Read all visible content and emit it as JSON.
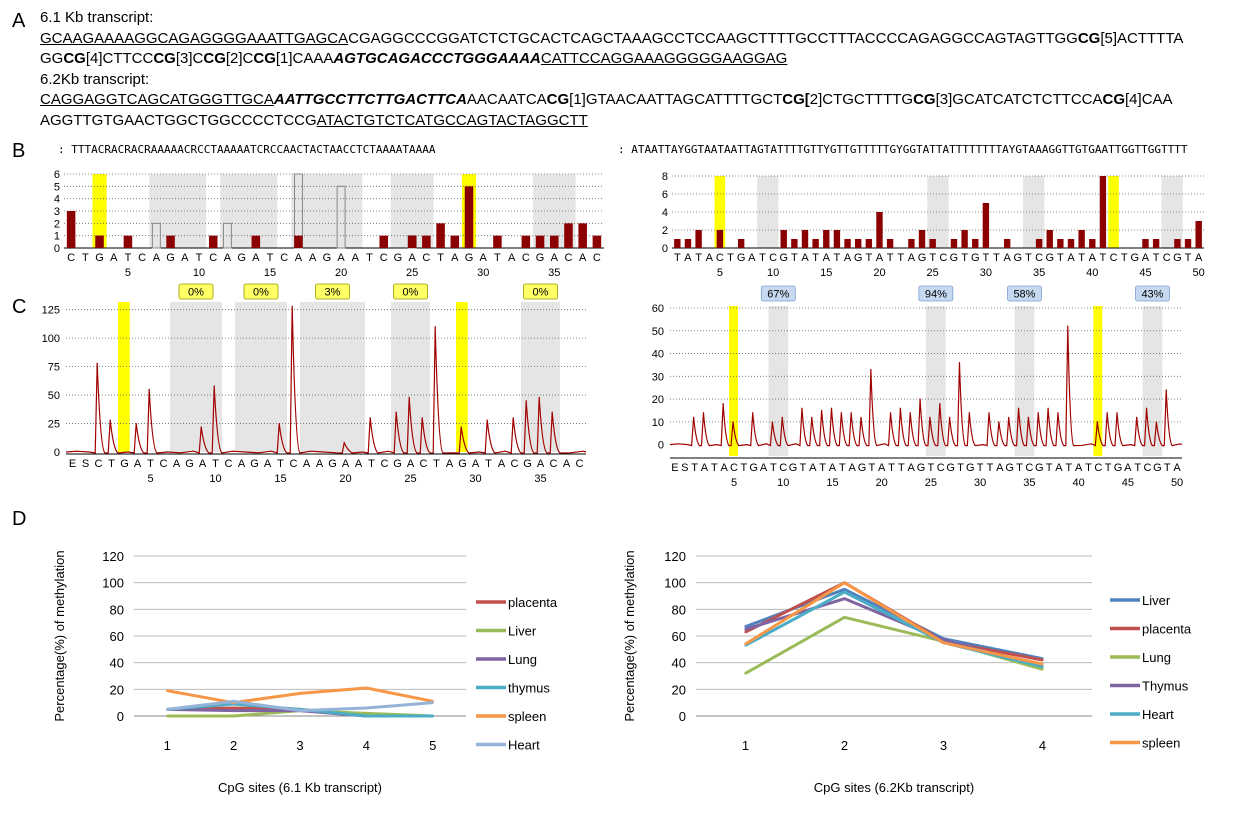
{
  "panel_labels": [
    "A",
    "B",
    "C",
    "D"
  ],
  "sequences": {
    "t61_title": "6.1 Kb transcript:",
    "t61_line1": [
      {
        "t": "GCAAGAAAAGGCAGAGGGGAAATTGAGCA",
        "s": "u"
      },
      {
        "t": "CGAGGCCCGGATCTCTGCACTCAGCTAAAGCCTCCAAGCTTTTGCCTTTACCCCAGAGGCCAGTAGTTGG",
        "s": ""
      },
      {
        "t": "CG",
        "s": "b"
      },
      {
        "t": "[5]ACTTTTA",
        "s": ""
      }
    ],
    "t61_line2": [
      {
        "t": "GG",
        "s": ""
      },
      {
        "t": "CG",
        "s": "b"
      },
      {
        "t": "[4]CTTCC",
        "s": ""
      },
      {
        "t": "CG",
        "s": "b"
      },
      {
        "t": "[3]C",
        "s": ""
      },
      {
        "t": "CG",
        "s": "b"
      },
      {
        "t": "[2]C",
        "s": ""
      },
      {
        "t": "CG",
        "s": "b"
      },
      {
        "t": "[1]CAAA",
        "s": ""
      },
      {
        "t": "AGTGCAGACCCTGGGAAAA",
        "s": "bi"
      },
      {
        "t": "CATTCCAGGAAAGGGGGAAGGAG",
        "s": "u"
      }
    ],
    "t62_title": "6.2Kb transcript:",
    "t62_line1": [
      {
        "t": "CAGGAGGTCAGCATGGGTTGCA",
        "s": "u"
      },
      {
        "t": "AATTGCCTTCTTGACTTCA",
        "s": "bi"
      },
      {
        "t": "AACAATCA",
        "s": ""
      },
      {
        "t": "CG",
        "s": "b"
      },
      {
        "t": "[1]GTAACAATTAGCATTTTGCT",
        "s": ""
      },
      {
        "t": "CG[",
        "s": "b"
      },
      {
        "t": "2]CTGCTTTTG",
        "s": ""
      },
      {
        "t": "CG",
        "s": "b"
      },
      {
        "t": "[3]GCATCATCTCTTCCA",
        "s": ""
      },
      {
        "t": "CG",
        "s": "b"
      },
      {
        "t": "[4]CAA",
        "s": ""
      }
    ],
    "t62_line2": [
      {
        "t": "AGGTTGTGAACTGGCTGGCCCCTCCG",
        "s": ""
      },
      {
        "t": "ATACTGTCTCATGCCAGTACTAGGCTT",
        "s": "u"
      }
    ]
  },
  "chart_data": [
    {
      "type": "bar",
      "panel": "B-left",
      "sequence_label": ": TTTACRACRACRAAAAACRCCTAAAAATCRCCAACTACTAACCTCTAAAATAAAA",
      "categories": [
        "C",
        "T",
        "G",
        "A",
        "T",
        "C",
        "A",
        "G",
        "A",
        "T",
        "C",
        "A",
        "G",
        "A",
        "T",
        "C",
        "A",
        "A",
        "G",
        "A",
        "A",
        "T",
        "C",
        "G",
        "A",
        "C",
        "T",
        "A",
        "G",
        "A",
        "T",
        "A",
        "C",
        "G",
        "A",
        "C",
        "A",
        "C"
      ],
      "values": [
        3,
        0,
        1,
        0,
        1,
        0,
        0,
        1,
        0,
        0,
        1,
        0,
        0,
        1,
        0,
        0,
        1,
        0,
        0,
        0,
        0,
        0,
        1,
        0,
        1,
        1,
        2,
        1,
        5,
        0,
        1,
        0,
        1,
        1,
        1,
        2,
        2,
        1
      ],
      "expected_outline": {
        "positions": [
          7,
          12,
          17,
          20,
          25
        ],
        "values": [
          2,
          2,
          6,
          5,
          1
        ]
      },
      "ylim": [
        0,
        6
      ],
      "yticks": [
        0,
        1,
        2,
        3,
        4,
        5,
        6
      ],
      "xticks": [
        5,
        10,
        15,
        20,
        25,
        30,
        35
      ],
      "highlight_yellow": [
        3,
        29
      ],
      "highlight_gray": [
        [
          7,
          10
        ],
        [
          12,
          15
        ],
        [
          17,
          21
        ],
        [
          24,
          26
        ],
        [
          34,
          36
        ]
      ],
      "color": "#8b0000"
    },
    {
      "type": "bar",
      "panel": "B-right",
      "sequence_label": ": ATAATTAYGGTAATAATTAGTATTTTGTTYGTTGTTTTTGYGGTATTATTTTTTTTAYGTAAAGGTTGTGAATTGGTTGGTTTT",
      "categories": [
        "T",
        "A",
        "T",
        "A",
        "C",
        "T",
        "G",
        "A",
        "T",
        "C",
        "G",
        "T",
        "A",
        "T",
        "A",
        "T",
        "A",
        "G",
        "T",
        "A",
        "T",
        "T",
        "A",
        "G",
        "T",
        "C",
        "G",
        "T",
        "G",
        "T",
        "T",
        "A",
        "G",
        "T",
        "C",
        "G",
        "T",
        "A",
        "T",
        "A",
        "T",
        "C",
        "T",
        "G",
        "A",
        "T",
        "C",
        "G",
        "T",
        "A"
      ],
      "values": [
        1,
        1,
        2,
        0,
        2,
        0,
        1,
        0,
        0,
        0,
        2,
        1,
        2,
        1,
        2,
        2,
        1,
        1,
        1,
        4,
        1,
        0,
        1,
        2,
        1,
        0,
        1,
        2,
        1,
        5,
        0,
        1,
        0,
        0,
        1,
        2,
        1,
        1,
        2,
        1,
        8,
        0,
        0,
        0,
        1,
        1,
        0,
        1,
        1,
        3
      ],
      "ylim": [
        0,
        8
      ],
      "yticks": [
        0,
        2,
        4,
        6,
        8
      ],
      "xticks": [
        5,
        10,
        15,
        20,
        25,
        30,
        35,
        40,
        45,
        50
      ],
      "highlight_yellow": [
        5,
        42
      ],
      "highlight_gray": [
        [
          9,
          10
        ],
        [
          25,
          26
        ],
        [
          34,
          35
        ],
        [
          47,
          48
        ]
      ],
      "color": "#8b0000"
    },
    {
      "type": "line",
      "panel": "C-left",
      "categories": [
        "E",
        "S",
        "C",
        "T",
        "G",
        "A",
        "T",
        "C",
        "A",
        "G",
        "A",
        "T",
        "C",
        "A",
        "G",
        "A",
        "T",
        "C",
        "A",
        "A",
        "G",
        "A",
        "A",
        "T",
        "C",
        "G",
        "A",
        "C",
        "T",
        "A",
        "G",
        "A",
        "T",
        "A",
        "C",
        "G",
        "A",
        "C",
        "A",
        "C"
      ],
      "peaks": [
        0,
        0,
        78,
        28,
        0,
        25,
        55,
        0,
        0,
        0,
        22,
        58,
        0,
        0,
        0,
        0,
        25,
        128,
        0,
        0,
        0,
        8,
        0,
        30,
        0,
        35,
        48,
        30,
        110,
        0,
        22,
        0,
        28,
        0,
        30,
        45,
        48,
        35,
        0,
        0
      ],
      "ylim": [
        0,
        130
      ],
      "yticks": [
        0,
        25,
        50,
        75,
        100,
        125
      ],
      "xticks": [
        5,
        10,
        15,
        20,
        25,
        30,
        35
      ],
      "percent_labels": [
        "0%",
        "0%",
        "3%",
        "0%",
        "0%"
      ],
      "highlight_yellow": [
        3,
        29
      ],
      "highlight_gray": [
        [
          7,
          10
        ],
        [
          12,
          15
        ],
        [
          17,
          21
        ],
        [
          24,
          26
        ],
        [
          34,
          36
        ]
      ],
      "color": "#a00000"
    },
    {
      "type": "line",
      "panel": "C-right",
      "categories": [
        "E",
        "S",
        "T",
        "A",
        "T",
        "A",
        "C",
        "T",
        "G",
        "A",
        "T",
        "C",
        "G",
        "T",
        "A",
        "T",
        "A",
        "T",
        "A",
        "G",
        "T",
        "A",
        "T",
        "T",
        "A",
        "G",
        "T",
        "C",
        "G",
        "T",
        "G",
        "T",
        "T",
        "A",
        "G",
        "T",
        "C",
        "G",
        "T",
        "A",
        "T",
        "A",
        "T",
        "C",
        "T",
        "G",
        "A",
        "T",
        "C",
        "G",
        "T",
        "A"
      ],
      "peaks": [
        0,
        0,
        12,
        14,
        0,
        18,
        10,
        0,
        14,
        0,
        10,
        12,
        0,
        16,
        12,
        15,
        16,
        14,
        14,
        12,
        33,
        0,
        14,
        16,
        14,
        20,
        12,
        18,
        12,
        36,
        14,
        0,
        14,
        10,
        12,
        16,
        12,
        14,
        16,
        14,
        52,
        0,
        0,
        10,
        14,
        14,
        0,
        12,
        16,
        10,
        24,
        0
      ],
      "ylim": [
        -5,
        60
      ],
      "yticks": [
        0,
        10,
        20,
        30,
        40,
        50,
        60
      ],
      "xticks": [
        5,
        10,
        15,
        20,
        25,
        30,
        35,
        40,
        45,
        50
      ],
      "percent_labels": [
        "67%",
        "94%",
        "58%",
        "43%"
      ],
      "highlight_yellow": [
        5,
        42
      ],
      "highlight_gray": [
        [
          9,
          10
        ],
        [
          25,
          26
        ],
        [
          34,
          35
        ],
        [
          47,
          48
        ]
      ],
      "color": "#a00000"
    },
    {
      "type": "line",
      "panel": "D-left",
      "categories": [
        "1",
        "2",
        "3",
        "4",
        "5"
      ],
      "xlabel": "CpG sites (6.1 Kb transcript)",
      "ylabel": "Percentage(%) of methylation",
      "ylim": [
        0,
        120
      ],
      "yticks": [
        0,
        20,
        40,
        60,
        80,
        100,
        120
      ],
      "series": [
        {
          "name": "placenta",
          "color": "#c0504d",
          "values": [
            5,
            6,
            5,
            0,
            0
          ]
        },
        {
          "name": "Liver",
          "color": "#9bbb59",
          "values": [
            0,
            0,
            4,
            2,
            0
          ]
        },
        {
          "name": "Lung",
          "color": "#8064a2",
          "values": [
            5,
            4,
            4,
            0,
            0
          ]
        },
        {
          "name": "thymus",
          "color": "#4bacc6",
          "values": [
            5,
            9,
            5,
            0,
            0
          ]
        },
        {
          "name": "spleen",
          "color": "#f79646",
          "values": [
            19,
            10,
            17,
            21,
            11
          ]
        },
        {
          "name": "Heart",
          "color": "#95b3d7",
          "values": [
            5,
            11,
            4,
            6,
            10
          ]
        }
      ],
      "legend": "right"
    },
    {
      "type": "line",
      "panel": "D-right",
      "categories": [
        "1",
        "2",
        "3",
        "4"
      ],
      "xlabel": "CpG sites (6.2Kb transcript)",
      "ylabel": "Percentage(%) of methylation",
      "ylim": [
        0,
        120
      ],
      "yticks": [
        0,
        20,
        40,
        60,
        80,
        100,
        120
      ],
      "series": [
        {
          "name": "Liver",
          "color": "#4f81bd",
          "values": [
            67,
            95,
            58,
            43
          ]
        },
        {
          "name": "placenta",
          "color": "#c0504d",
          "values": [
            63,
            100,
            56,
            42
          ]
        },
        {
          "name": "Lung",
          "color": "#9bbb59",
          "values": [
            32,
            74,
            56,
            35
          ]
        },
        {
          "name": "Thymus",
          "color": "#8064a2",
          "values": [
            65,
            88,
            57,
            37
          ]
        },
        {
          "name": "Heart",
          "color": "#4bacc6",
          "values": [
            53,
            93,
            55,
            37
          ]
        },
        {
          "name": "spleen",
          "color": "#f79646",
          "values": [
            54,
            100,
            55,
            39
          ]
        }
      ],
      "legend": "right"
    }
  ]
}
